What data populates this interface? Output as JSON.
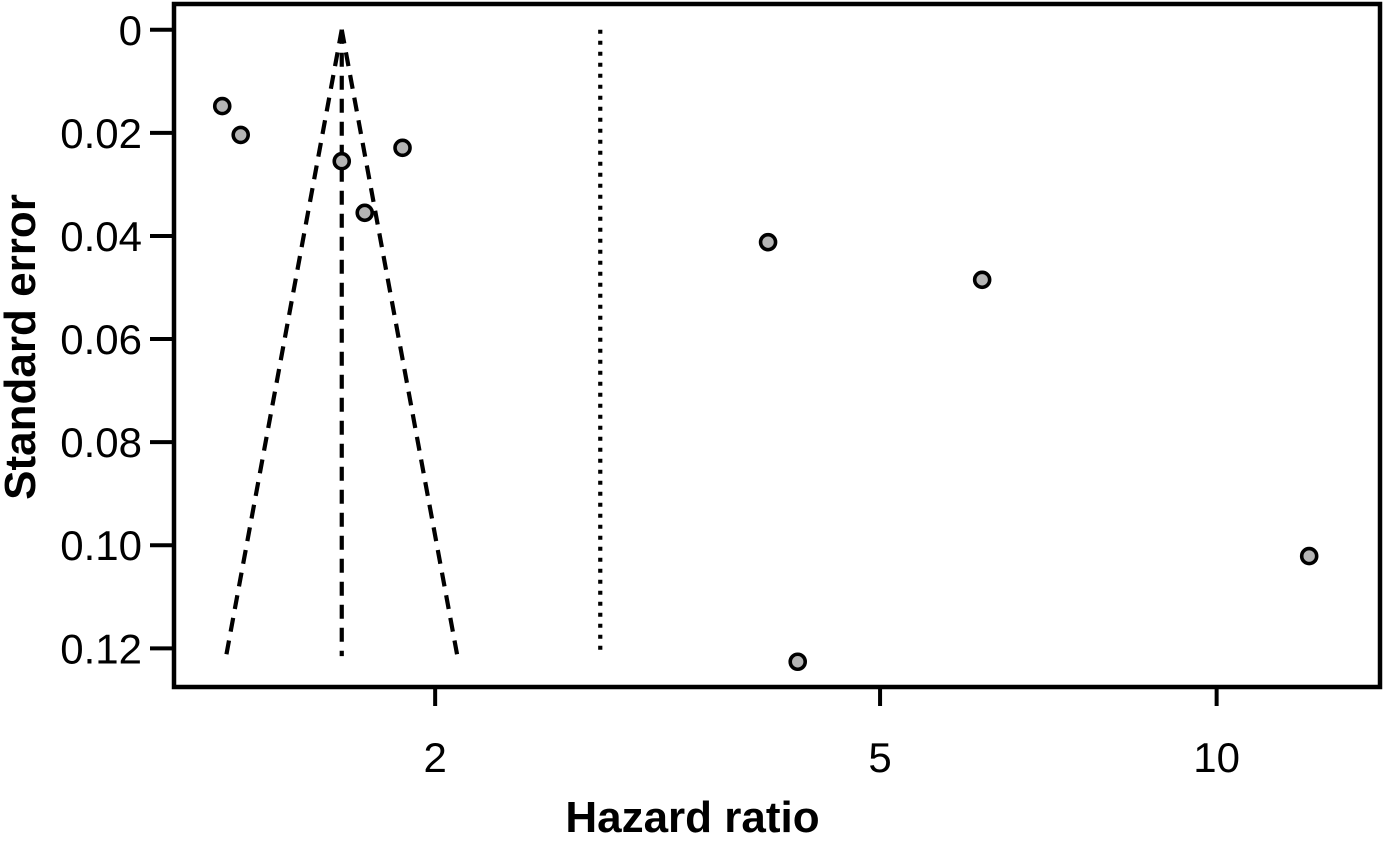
{
  "figure": {
    "background_color": "#ffffff",
    "frame_color": "#000000"
  },
  "chart_data": {
    "type": "scatter",
    "subtype": "funnel-plot",
    "title": "",
    "xlabel": "Hazard ratio",
    "ylabel": "Standard error",
    "x_scale": "log",
    "y_inverted": true,
    "x_domain": [
      1.168,
      14.0
    ],
    "y_domain": [
      -0.005,
      0.1275
    ],
    "grid": false,
    "legend": "none",
    "x_ticks": [
      {
        "value": 2,
        "label": "2"
      },
      {
        "value": 5,
        "label": "5"
      },
      {
        "value": 10,
        "label": "10"
      }
    ],
    "y_ticks": [
      {
        "value": 0,
        "label": "0"
      },
      {
        "value": 0.02,
        "label": "0.02"
      },
      {
        "value": 0.04,
        "label": "0.04"
      },
      {
        "value": 0.06,
        "label": "0.06"
      },
      {
        "value": 0.08,
        "label": "0.08"
      },
      {
        "value": 0.1,
        "label": "0.10"
      },
      {
        "value": 0.12,
        "label": "0.12"
      }
    ],
    "points": [
      {
        "hr": 1.29,
        "se": 0.0148
      },
      {
        "hr": 1.34,
        "se": 0.0204
      },
      {
        "hr": 1.65,
        "se": 0.0255
      },
      {
        "hr": 1.87,
        "se": 0.0229
      },
      {
        "hr": 1.73,
        "se": 0.0355
      },
      {
        "hr": 3.97,
        "se": 0.0412
      },
      {
        "hr": 6.17,
        "se": 0.0485
      },
      {
        "hr": 4.22,
        "se": 0.1226
      },
      {
        "hr": 12.1,
        "se": 0.1021
      }
    ],
    "funnel": {
      "center_hr": 1.65,
      "z": 1.96,
      "se_top": 0.0,
      "se_bottom": 0.1215,
      "line_style": "dashed"
    },
    "center_line": {
      "hr": 1.65,
      "line_style": "dashed"
    },
    "reference_line": {
      "hr": 2.81,
      "line_style": "dotted"
    },
    "marker": {
      "shape": "circle",
      "fill": "#b5b5b5",
      "stroke": "#000000"
    },
    "line_color": "#000000"
  }
}
